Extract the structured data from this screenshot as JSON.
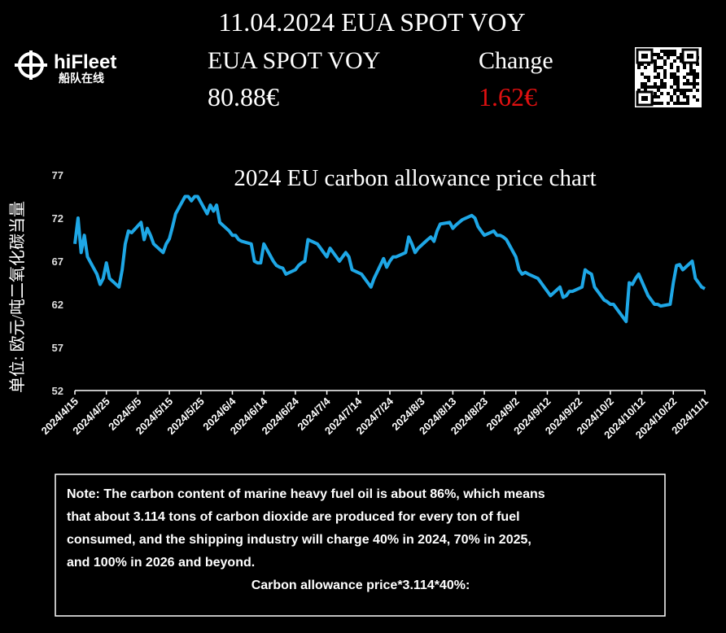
{
  "header": {
    "title": "11.04.2024 EUA SPOT VOY",
    "product": "EUA SPOT VOY",
    "price": "80.88€",
    "change_label": "Change",
    "change": "1.62€",
    "logo_name": "hiFleet",
    "logo_sub": "船队在线"
  },
  "chart_data": {
    "type": "line",
    "title": "2024 EU carbon allowance price chart",
    "y_label": "单位: 欧元/吨二氧化碳当量",
    "xlim": [
      "2024/4/15",
      "2024/11/1"
    ],
    "xticks": [
      "2024/4/15",
      "2024/4/25",
      "2024/5/5",
      "2024/5/15",
      "2024/5/25",
      "2024/6/4",
      "2024/6/14",
      "2024/6/24",
      "2024/7/4",
      "2024/7/14",
      "2024/7/24",
      "2024/8/3",
      "2024/8/13",
      "2024/8/23",
      "2024/9/2",
      "2024/9/12",
      "2024/9/22",
      "2024/10/2",
      "2024/10/12",
      "2024/10/22",
      "2024/11/1"
    ],
    "ylim": [
      52,
      77
    ],
    "yticks": [
      52,
      57,
      62,
      67,
      72,
      77
    ],
    "series": [
      {
        "name": "EUA",
        "color": "#1ea7e6",
        "x": [
          "2024/4/15",
          "2024/4/16",
          "2024/4/17",
          "2024/4/18",
          "2024/4/19",
          "2024/4/22",
          "2024/4/23",
          "2024/4/24",
          "2024/4/25",
          "2024/4/26",
          "2024/4/29",
          "2024/4/30",
          "2024/5/1",
          "2024/5/2",
          "2024/5/3",
          "2024/5/6",
          "2024/5/7",
          "2024/5/8",
          "2024/5/9",
          "2024/5/10",
          "2024/5/13",
          "2024/5/14",
          "2024/5/15",
          "2024/5/16",
          "2024/5/17",
          "2024/5/20",
          "2024/5/21",
          "2024/5/22",
          "2024/5/23",
          "2024/5/24",
          "2024/5/27",
          "2024/5/28",
          "2024/5/29",
          "2024/5/30",
          "2024/5/31",
          "2024/6/3",
          "2024/6/4",
          "2024/6/5",
          "2024/6/6",
          "2024/6/7",
          "2024/6/10",
          "2024/6/11",
          "2024/6/12",
          "2024/6/13",
          "2024/6/14",
          "2024/6/17",
          "2024/6/18",
          "2024/6/19",
          "2024/6/20",
          "2024/6/21",
          "2024/6/24",
          "2024/6/25",
          "2024/6/26",
          "2024/6/27",
          "2024/6/28",
          "2024/7/1",
          "2024/7/2",
          "2024/7/3",
          "2024/7/4",
          "2024/7/5",
          "2024/7/8",
          "2024/7/9",
          "2024/7/10",
          "2024/7/11",
          "2024/7/12",
          "2024/7/15",
          "2024/7/16",
          "2024/7/17",
          "2024/7/18",
          "2024/7/19",
          "2024/7/22",
          "2024/7/23",
          "2024/7/24",
          "2024/7/25",
          "2024/7/26",
          "2024/7/29",
          "2024/7/30",
          "2024/7/31",
          "2024/8/1",
          "2024/8/2",
          "2024/8/5",
          "2024/8/6",
          "2024/8/7",
          "2024/8/8",
          "2024/8/9",
          "2024/8/12",
          "2024/8/13",
          "2024/8/14",
          "2024/8/15",
          "2024/8/16",
          "2024/8/19",
          "2024/8/20",
          "2024/8/21",
          "2024/8/22",
          "2024/8/23",
          "2024/8/26",
          "2024/8/27",
          "2024/8/28",
          "2024/8/29",
          "2024/8/30",
          "2024/9/2",
          "2024/9/3",
          "2024/9/4",
          "2024/9/5",
          "2024/9/6",
          "2024/9/9",
          "2024/9/10",
          "2024/9/11",
          "2024/9/12",
          "2024/9/13",
          "2024/9/16",
          "2024/9/17",
          "2024/9/18",
          "2024/9/19",
          "2024/9/20",
          "2024/9/23",
          "2024/9/24",
          "2024/9/25",
          "2024/9/26",
          "2024/9/27",
          "2024/9/30",
          "2024/10/1",
          "2024/10/2",
          "2024/10/3",
          "2024/10/4",
          "2024/10/7",
          "2024/10/8",
          "2024/10/9",
          "2024/10/10",
          "2024/10/11",
          "2024/10/14",
          "2024/10/15",
          "2024/10/16",
          "2024/10/17",
          "2024/10/18",
          "2024/10/21",
          "2024/10/22",
          "2024/10/23",
          "2024/10/24",
          "2024/10/25",
          "2024/10/28",
          "2024/10/29",
          "2024/10/30",
          "2024/10/31",
          "2024/11/1"
        ],
        "values": [
          69,
          72,
          68,
          70,
          67.5,
          65.5,
          64.3,
          65,
          66.8,
          65,
          64,
          66,
          69,
          70.5,
          70.3,
          71.5,
          69.5,
          70.8,
          70,
          69,
          68,
          69,
          69.6,
          71,
          72.5,
          74.5,
          74.5,
          74,
          74.5,
          74.5,
          72.5,
          73.5,
          72.8,
          73.5,
          71.5,
          70.5,
          70,
          70,
          69.5,
          69.3,
          69,
          67,
          66.8,
          66.8,
          69,
          67,
          66.5,
          66.3,
          66.2,
          65.5,
          66,
          66.5,
          66.8,
          67,
          69.5,
          69,
          68.5,
          68,
          67.5,
          68.5,
          67,
          67.5,
          68,
          67.5,
          66,
          65.5,
          65,
          64.5,
          64,
          65,
          67.3,
          66.3,
          67,
          67.5,
          67.5,
          68,
          69.8,
          69,
          68,
          68.5,
          69.5,
          69.8,
          69.3,
          70.5,
          71.3,
          71.5,
          70.8,
          71.2,
          71.5,
          71.8,
          72.3,
          72,
          71,
          70.5,
          70,
          70.5,
          70,
          70,
          69.8,
          69.5,
          67.5,
          66,
          65.5,
          65.7,
          65.5,
          65,
          64.5,
          64,
          63.5,
          63,
          64,
          62.8,
          63,
          63.5,
          63.5,
          64,
          66,
          65.7,
          65.5,
          64,
          62.5,
          62.3,
          62,
          62,
          61.5,
          60,
          64.5,
          64.3,
          65,
          65.5,
          63,
          62.5,
          62,
          62,
          61.8,
          62,
          64.5,
          66.5,
          66.6,
          66,
          67,
          65,
          64.5,
          64,
          63.8
        ]
      }
    ]
  },
  "note": {
    "lines": [
      "Note: The carbon content of marine heavy fuel oil is about 86%, which means",
      "that about 3.114 tons of carbon dioxide are produced for every ton of fuel",
      "consumed, and the shipping industry will charge 40% in 2024, 70% in 2025,",
      "and 100% in 2026 and beyond."
    ],
    "formula": "Carbon allowance price*3.114*40%:"
  }
}
